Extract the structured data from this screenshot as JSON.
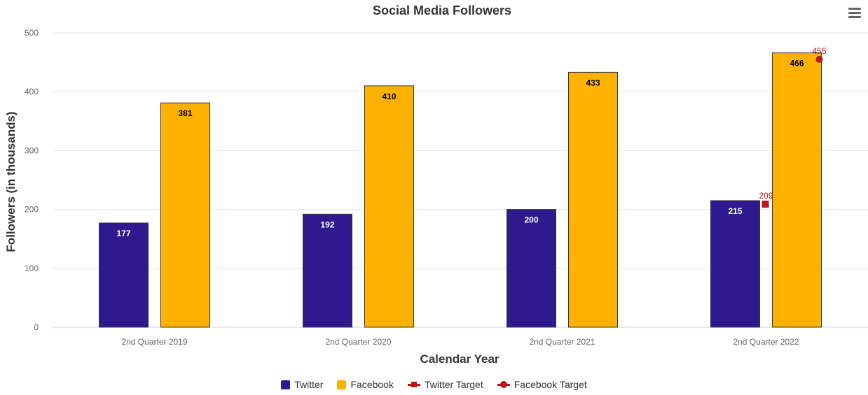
{
  "menu": {
    "icon": "hamburger-menu-icon"
  },
  "chart_data": {
    "type": "bar",
    "title": "Social Media Followers",
    "xlabel": "Calendar Year",
    "ylabel": "Followers (in thousands)",
    "categories": [
      "2nd Quarter 2019",
      "2nd Quarter 2020",
      "2nd Quarter 2021",
      "2nd Quarter 2022"
    ],
    "ylim": [
      0,
      500
    ],
    "yticks": [
      0,
      100,
      200,
      300,
      400,
      500
    ],
    "ytick_labels": [
      "0",
      "100",
      "200",
      "300",
      "400",
      "500"
    ],
    "grid": true,
    "legend_position": "bottom-center",
    "series": [
      {
        "name": "Twitter",
        "type": "bar",
        "color": "#2e1a8e",
        "values": [
          177,
          192,
          200,
          215
        ],
        "labels": [
          "177",
          "192",
          "200",
          "215"
        ]
      },
      {
        "name": "Facebook",
        "type": "bar",
        "color": "#ffb100",
        "values": [
          381,
          410,
          433,
          466
        ],
        "labels": [
          "381",
          "410",
          "433",
          "466"
        ]
      },
      {
        "name": "Twitter Target",
        "type": "marker",
        "marker": "square",
        "color": "#b5171b",
        "values": [
          null,
          null,
          null,
          209
        ],
        "labels": [
          "",
          "",
          "",
          "209"
        ]
      },
      {
        "name": "Facebook Target",
        "type": "marker",
        "marker": "circle",
        "color": "#b5171b",
        "values": [
          null,
          null,
          null,
          455
        ],
        "labels": [
          "",
          "",
          "",
          "455"
        ]
      }
    ]
  }
}
